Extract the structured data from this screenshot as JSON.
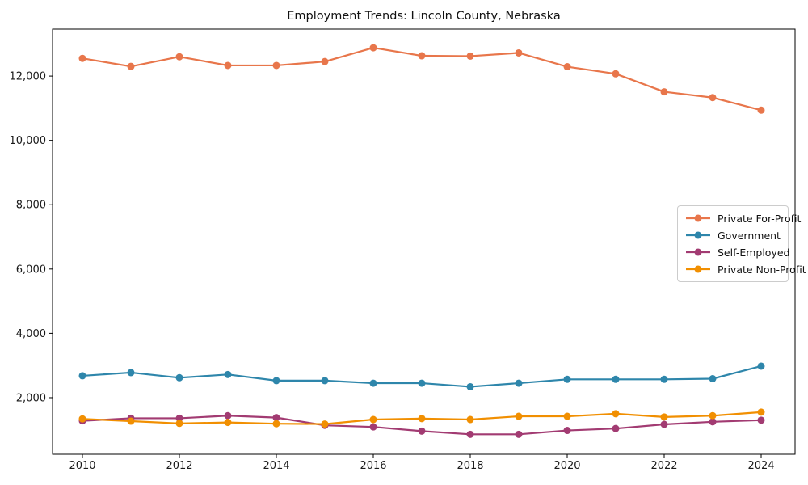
{
  "chart_data": {
    "type": "line",
    "title": "Employment Trends: Lincoln County, Nebraska",
    "xlabel": "",
    "ylabel": "",
    "grid": false,
    "legend_position": "center-right",
    "x": [
      2010,
      2011,
      2012,
      2013,
      2014,
      2015,
      2016,
      2017,
      2018,
      2019,
      2020,
      2021,
      2022,
      2023,
      2024
    ],
    "x_tick_values": [
      2010,
      2012,
      2014,
      2016,
      2018,
      2020,
      2022,
      2024
    ],
    "x_tick_labels": [
      "2010",
      "2012",
      "2014",
      "2016",
      "2018",
      "2020",
      "2022",
      "2024"
    ],
    "y_tick_values": [
      2000,
      4000,
      6000,
      8000,
      10000,
      12000
    ],
    "y_tick_labels": [
      "2,000",
      "4,000",
      "6,000",
      "8,000",
      "10,000",
      "12,000"
    ],
    "xlim": [
      2009.3833,
      2024.7
    ],
    "ylim": [
      240,
      13460
    ],
    "series": [
      {
        "name": "Private For-Profit",
        "color": "#e8764b",
        "values": [
          12550,
          12300,
          12600,
          12330,
          12330,
          12450,
          12880,
          12630,
          12620,
          12720,
          12290,
          12070,
          11510,
          11330,
          10940
        ]
      },
      {
        "name": "Government",
        "color": "#2e86ab",
        "values": [
          2680,
          2780,
          2620,
          2720,
          2530,
          2530,
          2450,
          2450,
          2340,
          2450,
          2570,
          2570,
          2570,
          2590,
          2980
        ]
      },
      {
        "name": "Self-Employed",
        "color": "#a23b72",
        "values": [
          1280,
          1360,
          1360,
          1440,
          1380,
          1140,
          1090,
          960,
          860,
          860,
          980,
          1040,
          1170,
          1250,
          1300
        ]
      },
      {
        "name": "Private Non-Profit",
        "color": "#f18f01",
        "values": [
          1340,
          1270,
          1200,
          1230,
          1190,
          1180,
          1320,
          1350,
          1320,
          1420,
          1420,
          1500,
          1400,
          1440,
          1550
        ]
      }
    ]
  }
}
